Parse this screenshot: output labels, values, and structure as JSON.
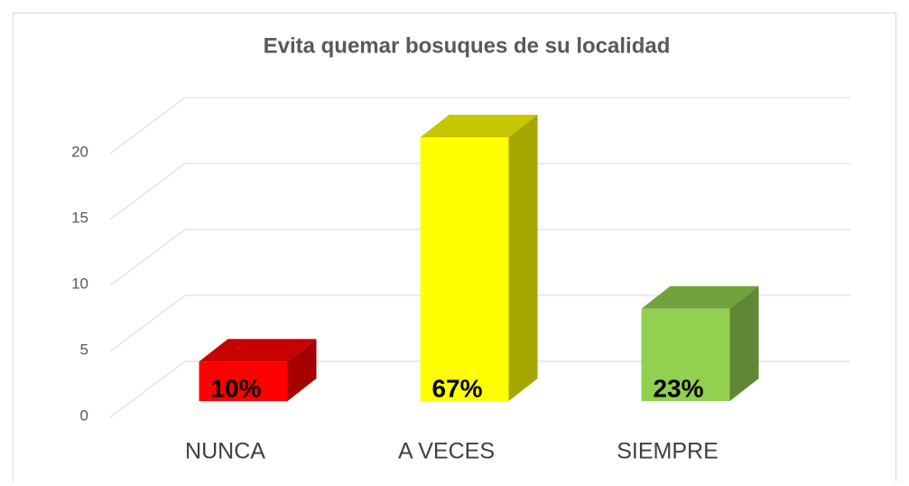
{
  "chart_data": {
    "type": "bar3d",
    "title": "Evita quemar bosuques de su localidad",
    "categories": [
      "NUNCA",
      "A VECES",
      "SIEMPRE"
    ],
    "values": [
      3,
      20,
      7
    ],
    "value_labels": [
      "10%",
      "67%",
      "23%"
    ],
    "colors": [
      "#ff0000",
      "#ffff00",
      "#92d050"
    ],
    "ylim": [
      0,
      20
    ],
    "yticks": [
      0,
      5,
      10,
      15,
      20
    ],
    "grid": true
  }
}
